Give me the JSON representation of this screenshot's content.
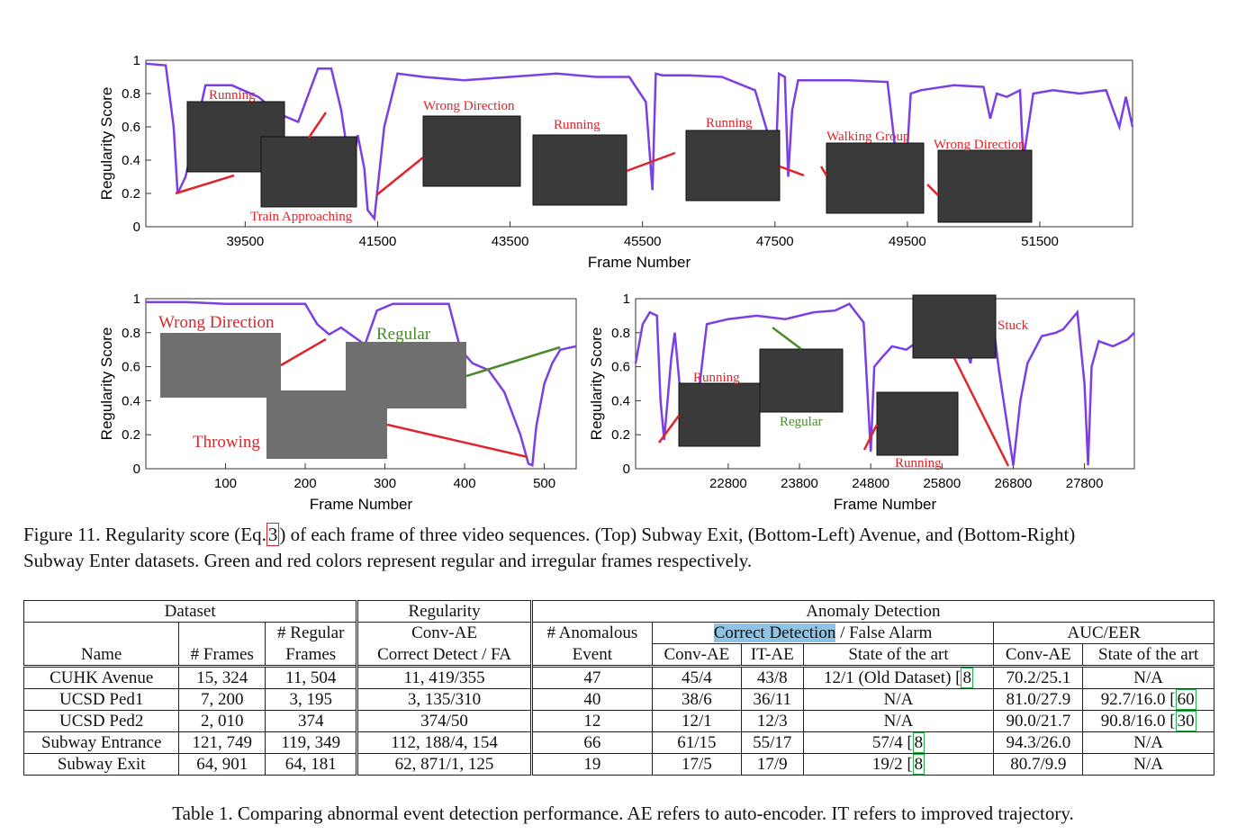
{
  "top_chart": {
    "type": "line",
    "xlabel": "Frame Number",
    "ylabel": "Regularity Score",
    "xticks": [
      "39500",
      "41500",
      "43500",
      "45500",
      "47500",
      "49500",
      "51500"
    ],
    "yticks": [
      "0",
      "0.2",
      "0.4",
      "0.6",
      "0.8",
      "1"
    ],
    "xlim": [
      38000,
      52900
    ],
    "ylim": [
      0,
      1
    ],
    "color": "#7b3fe4",
    "annotations": [
      "Running",
      "Train Approaching",
      "Wrong Direction",
      "Running",
      "Running",
      "Walking Group",
      "Wrong Direction"
    ],
    "x": [
      38000,
      38300,
      38420,
      38480,
      38600,
      38900,
      39300,
      39700,
      40000,
      40300,
      40600,
      40800,
      40950,
      41100,
      41200,
      41300,
      41350,
      41450,
      41600,
      41800,
      42200,
      42800,
      43500,
      44200,
      44800,
      45300,
      45550,
      45650,
      45700,
      45800,
      46200,
      46700,
      47200,
      47400,
      47500,
      47560,
      47650,
      47700,
      47760,
      47850,
      48000,
      48600,
      49200,
      49350,
      49450,
      49550,
      49700,
      50200,
      50650,
      50750,
      50850,
      51000,
      51200,
      51250,
      51400,
      51700,
      52100,
      52500,
      52700,
      52800,
      52900
    ],
    "y": [
      0.98,
      0.97,
      0.6,
      0.2,
      0.3,
      0.85,
      0.85,
      0.78,
      0.68,
      0.63,
      0.95,
      0.95,
      0.7,
      0.3,
      0.55,
      0.35,
      0.1,
      0.05,
      0.6,
      0.92,
      0.9,
      0.88,
      0.9,
      0.92,
      0.9,
      0.9,
      0.75,
      0.22,
      0.92,
      0.91,
      0.91,
      0.9,
      0.82,
      0.55,
      0.25,
      0.92,
      0.9,
      0.3,
      0.7,
      0.88,
      0.88,
      0.88,
      0.87,
      0.35,
      0.15,
      0.8,
      0.82,
      0.85,
      0.84,
      0.65,
      0.8,
      0.78,
      0.82,
      0.4,
      0.8,
      0.82,
      0.8,
      0.82,
      0.6,
      0.78,
      0.6
    ]
  },
  "bottom_left_chart": {
    "type": "line",
    "xlabel": "Frame Number",
    "ylabel": "Regularity Score",
    "xticks": [
      "100",
      "200",
      "300",
      "400",
      "500"
    ],
    "yticks": [
      "0",
      "0.2",
      "0.4",
      "0.6",
      "0.8",
      "1"
    ],
    "xlim": [
      0,
      540
    ],
    "ylim": [
      0,
      1
    ],
    "color": "#7b3fe4",
    "annotations": [
      "Wrong Direction",
      "Regular",
      "Throwing"
    ],
    "x": [
      0,
      50,
      100,
      150,
      200,
      215,
      230,
      245,
      260,
      275,
      290,
      310,
      350,
      380,
      395,
      410,
      430,
      450,
      470,
      480,
      485,
      490,
      500,
      510,
      520,
      540
    ],
    "y": [
      0.98,
      0.98,
      0.97,
      0.97,
      0.97,
      0.85,
      0.79,
      0.83,
      0.78,
      0.73,
      0.93,
      0.97,
      0.97,
      0.97,
      0.7,
      0.62,
      0.58,
      0.45,
      0.2,
      0.03,
      0.02,
      0.25,
      0.5,
      0.62,
      0.7,
      0.72
    ]
  },
  "bottom_right_chart": {
    "type": "line",
    "xlabel": "Frame Number",
    "ylabel": "Regularity Score",
    "xticks": [
      "22800",
      "23800",
      "24800",
      "25800",
      "26800",
      "27800"
    ],
    "yticks": [
      "0",
      "0.2",
      "0.4",
      "0.6",
      "0.8",
      "1"
    ],
    "xlim": [
      21500,
      28500
    ],
    "ylim": [
      0,
      1
    ],
    "color": "#7b3fe4",
    "annotations": [
      "Stuck",
      "Running",
      "Regular",
      "Running"
    ],
    "x": [
      21500,
      21600,
      21700,
      21800,
      21850,
      21900,
      22000,
      22050,
      22150,
      22300,
      22500,
      22800,
      23200,
      23600,
      24000,
      24300,
      24500,
      24700,
      24800,
      24850,
      24950,
      25100,
      25300,
      25700,
      25900,
      26100,
      26200,
      26300,
      26500,
      26600,
      26800,
      26900,
      27000,
      27200,
      27400,
      27500,
      27700,
      27800,
      27850,
      27900,
      28000,
      28200,
      28400,
      28500
    ],
    "y": [
      0.62,
      0.85,
      0.92,
      0.9,
      0.4,
      0.17,
      0.65,
      0.8,
      0.35,
      0.15,
      0.85,
      0.88,
      0.9,
      0.88,
      0.92,
      0.93,
      0.97,
      0.86,
      0.1,
      0.6,
      0.65,
      0.72,
      0.7,
      0.82,
      0.95,
      0.75,
      0.62,
      0.9,
      0.92,
      0.58,
      0.02,
      0.4,
      0.62,
      0.78,
      0.8,
      0.82,
      0.92,
      0.5,
      0.02,
      0.6,
      0.75,
      0.72,
      0.76,
      0.8
    ]
  },
  "figure_caption": {
    "prefix": "Figure 11. Regularity score (Eq.",
    "ref": "3",
    "rest": ") of each frame of three video sequences. (Top) Subway Exit, (Bottom-Left) Avenue, and (Bottom-Right)",
    "line2": "Subway Enter datasets. Green and red colors represent regular and irregular frames respectively."
  },
  "table": {
    "group_dataset": "Dataset",
    "group_regularity": "Regularity",
    "group_anomaly": "Anomaly Detection",
    "h_regular_1": "# Regular",
    "h_convae": "Conv-AE",
    "h_anom_1": "# Anomalous",
    "h_correct": "Correct Detection",
    "h_false": " / False Alarm",
    "h_aucer": "AUC/EER",
    "h_name": "Name",
    "h_frames": "# Frames",
    "h_regular_2": "Frames",
    "h_cdfa": "Correct Detect / FA",
    "h_event": "Event",
    "h_conv": "Conv-AE",
    "h_it": "IT-AE",
    "h_sota": "State of the art",
    "h_conv2": "Conv-AE",
    "h_sota2": "State of the art",
    "rows": [
      {
        "name": "CUHK Avenue",
        "frames": "15, 324",
        "regular": "11, 504",
        "cdfa": "11, 419/355",
        "events": "47",
        "conv": "45/4",
        "it": "43/8",
        "sota": "12/1 (Old Dataset) [",
        "sota_ref": "8",
        "auc": "70.2/25.1",
        "auc_sota": "N/A",
        "auc_ref": ""
      },
      {
        "name": "UCSD Ped1",
        "frames": "7, 200",
        "regular": "3, 195",
        "cdfa": "3, 135/310",
        "events": "40",
        "conv": "38/6",
        "it": "36/11",
        "sota": "N/A",
        "sota_ref": "",
        "auc": "81.0/27.9",
        "auc_sota": "92.7/16.0 [",
        "auc_ref": "60"
      },
      {
        "name": "UCSD Ped2",
        "frames": "2, 010",
        "regular": "374",
        "cdfa": "374/50",
        "events": "12",
        "conv": "12/1",
        "it": "12/3",
        "sota": "N/A",
        "sota_ref": "",
        "auc": "90.0/21.7",
        "auc_sota": "90.8/16.0 [",
        "auc_ref": "30"
      },
      {
        "name": "Subway Entrance",
        "frames": "121, 749",
        "regular": "119, 349",
        "cdfa": "112, 188/4, 154",
        "events": "66",
        "conv": "61/15",
        "it": "55/17",
        "sota": "57/4 [",
        "sota_ref": "8",
        "auc": "94.3/26.0",
        "auc_sota": "N/A",
        "auc_ref": ""
      },
      {
        "name": "Subway Exit",
        "frames": "64, 901",
        "regular": "64, 181",
        "cdfa": "62, 871/1, 125",
        "events": "19",
        "conv": "17/5",
        "it": "17/9",
        "sota": "19/2 [",
        "sota_ref": "8",
        "auc": "80.7/9.9",
        "auc_sota": "N/A",
        "auc_ref": ""
      }
    ]
  },
  "table_caption": "Table 1. Comparing abnormal event detection performance. AE refers to auto-encoder. IT refers to improved trajectory."
}
